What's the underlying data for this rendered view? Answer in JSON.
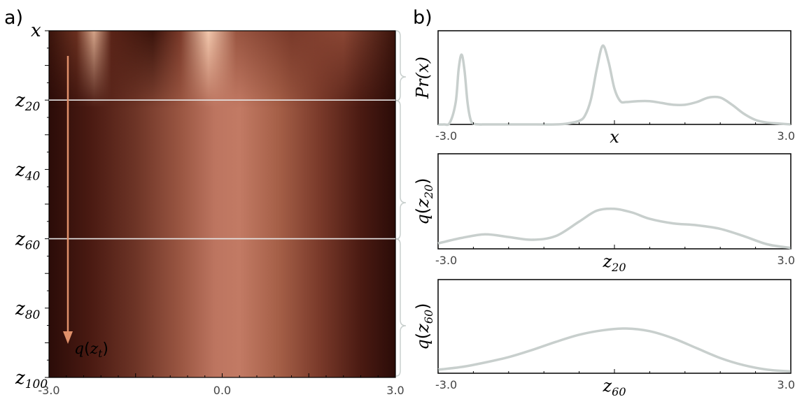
{
  "panel_a": {
    "label": "a)",
    "top_label": "x",
    "arrow_label_base": "q",
    "arrow_label_sub": "t",
    "arrow_label_var": "z",
    "arrow_color": "#e0906a",
    "xticks": [
      "-3.0",
      "0.0",
      "3.0"
    ],
    "y_labels": [
      {
        "base": "z",
        "sub": "20",
        "t": 20
      },
      {
        "base": "z",
        "sub": "40",
        "t": 40
      },
      {
        "base": "z",
        "sub": "60",
        "t": 60
      },
      {
        "base": "z",
        "sub": "80",
        "t": 80
      },
      {
        "base": "z",
        "sub": "100",
        "t": 100
      }
    ],
    "highlight_rows": [
      20,
      60
    ]
  },
  "panel_b": {
    "label": "b)",
    "line_color": "#c8cfcd"
  },
  "chart_data": [
    {
      "type": "heatmap",
      "x_range": [
        -3.0,
        3.0
      ],
      "y_range": [
        0,
        100
      ],
      "y_label_top": "x",
      "xticks": [
        -3.0,
        0.0,
        3.0
      ],
      "colormap": "dark-brown-to-salmon",
      "highlighted_time_steps": [
        20,
        60
      ],
      "annotation": "q(z_t)"
    },
    {
      "type": "line",
      "ylabel": "Pr(x)",
      "xlabel": "x",
      "xlim": [
        -3.0,
        3.0
      ],
      "xtick_labels": [
        "-3.0",
        "3.0"
      ],
      "x": [
        -3.0,
        -2.9,
        -2.8,
        -2.7,
        -2.65,
        -2.6,
        -2.55,
        -2.5,
        -2.45,
        -2.4,
        -2.3,
        -2.2,
        -2.0,
        -1.5,
        -1.0,
        -0.8,
        -0.6,
        -0.5,
        -0.4,
        -0.3,
        -0.2,
        -0.1,
        0.0,
        0.1,
        0.2,
        0.4,
        0.6,
        0.8,
        1.0,
        1.2,
        1.4,
        1.6,
        1.8,
        2.0,
        2.2,
        2.4,
        2.6,
        2.8,
        3.0
      ],
      "y": [
        0.0,
        0.0,
        0.02,
        0.25,
        0.62,
        0.78,
        0.6,
        0.25,
        0.06,
        0.01,
        0.0,
        0.0,
        0.0,
        0.0,
        0.0,
        0.01,
        0.04,
        0.1,
        0.28,
        0.62,
        0.88,
        0.7,
        0.4,
        0.26,
        0.25,
        0.26,
        0.26,
        0.24,
        0.22,
        0.22,
        0.25,
        0.3,
        0.3,
        0.22,
        0.12,
        0.05,
        0.02,
        0.01,
        0.0
      ]
    },
    {
      "type": "line",
      "ylabel_base": "q",
      "ylabel_var": "z",
      "ylabel_sub": "20",
      "xlabel_base": "z",
      "xlabel_sub": "20",
      "xlim": [
        -3.0,
        3.0
      ],
      "xtick_labels": [
        "-3.0",
        "3.0"
      ],
      "x": [
        -3.0,
        -2.6,
        -2.2,
        -1.8,
        -1.4,
        -1.0,
        -0.6,
        -0.3,
        0.0,
        0.3,
        0.6,
        1.0,
        1.4,
        1.8,
        2.2,
        2.6,
        3.0
      ],
      "y": [
        0.06,
        0.12,
        0.16,
        0.13,
        0.1,
        0.14,
        0.3,
        0.42,
        0.44,
        0.4,
        0.33,
        0.28,
        0.26,
        0.22,
        0.14,
        0.05,
        0.01
      ]
    },
    {
      "type": "line",
      "ylabel_base": "q",
      "ylabel_var": "z",
      "ylabel_sub": "60",
      "xlabel_base": "z",
      "xlabel_sub": "60",
      "xlim": [
        -3.0,
        3.0
      ],
      "xtick_labels": [
        "-3.0",
        "3.0"
      ],
      "x": [
        -3.0,
        -2.6,
        -2.2,
        -1.8,
        -1.4,
        -1.0,
        -0.6,
        -0.2,
        0.2,
        0.6,
        1.0,
        1.4,
        1.8,
        2.2,
        2.6,
        3.0
      ],
      "y": [
        0.04,
        0.07,
        0.12,
        0.18,
        0.26,
        0.35,
        0.43,
        0.48,
        0.5,
        0.47,
        0.39,
        0.28,
        0.17,
        0.09,
        0.04,
        0.02
      ]
    }
  ]
}
